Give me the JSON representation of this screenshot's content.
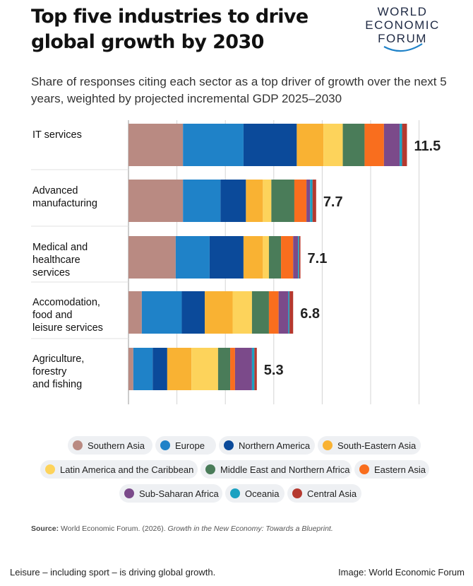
{
  "header": {
    "title": "Top five industries to drive global growth by 2030",
    "subtitle": "Share of responses citing each sector as a top driver of growth over the next 5 years, weighted by projected incremental GDP 2025–2030",
    "logo_lines": [
      "WORLD",
      "ECONOMIC",
      "FORUM"
    ]
  },
  "source": {
    "label": "Source:",
    "text": "World Economic Forum. (2026).",
    "title": "Growth in the New Economy: Towards a Blueprint."
  },
  "caption": "Leisure – including sport – is driving global growth.",
  "credit": "Image: World Economic Forum",
  "chart_data": {
    "type": "bar",
    "orientation": "horizontal",
    "stacked": true,
    "categories": [
      "IT services",
      "Advanced\nmanufacturing",
      "Medical and\nhealthcare\nservices",
      "Accomodation,\nfood and\nleisure services",
      "Agriculture,\nforestry\nand fishing"
    ],
    "totals": [
      "11.5",
      "7.7",
      "7.1",
      "6.8",
      "5.3"
    ],
    "xlim": [
      0,
      12
    ],
    "x_gridlines": [
      0,
      2,
      4,
      6,
      8,
      10,
      12
    ],
    "grid": true,
    "legend_position": "bottom",
    "series": [
      {
        "name": "Southern Asia",
        "color": "#b98a82",
        "values": [
          2.25,
          2.25,
          1.95,
          0.55,
          0.2
        ]
      },
      {
        "name": "Europe",
        "color": "#1f82c8",
        "values": [
          2.5,
          1.55,
          1.4,
          1.65,
          0.8
        ]
      },
      {
        "name": "Northern America",
        "color": "#0b4a9a",
        "values": [
          2.2,
          1.05,
          1.4,
          0.95,
          0.6
        ]
      },
      {
        "name": "South-Eastern Asia",
        "color": "#f9b233",
        "values": [
          1.1,
          0.7,
          0.8,
          1.15,
          1.0
        ]
      },
      {
        "name": "Latin America and the Caribbean",
        "color": "#fdd35b",
        "values": [
          0.8,
          0.35,
          0.25,
          0.8,
          1.1
        ]
      },
      {
        "name": "Middle East and Northern Africa",
        "color": "#4a7c59",
        "values": [
          0.9,
          0.95,
          0.5,
          0.7,
          0.5
        ]
      },
      {
        "name": "Eastern Asia",
        "color": "#f96e1e",
        "values": [
          0.8,
          0.5,
          0.5,
          0.4,
          0.2
        ]
      },
      {
        "name": "Sub-Saharan Africa",
        "color": "#7b4a8a",
        "values": [
          0.65,
          0.15,
          0.2,
          0.4,
          0.7
        ]
      },
      {
        "name": "Oceania",
        "color": "#1ba1c1",
        "values": [
          0.1,
          0.1,
          0.05,
          0.05,
          0.1
        ]
      },
      {
        "name": "Central Asia",
        "color": "#b5392f",
        "values": [
          0.2,
          0.15,
          0.05,
          0.15,
          0.1
        ]
      }
    ]
  }
}
